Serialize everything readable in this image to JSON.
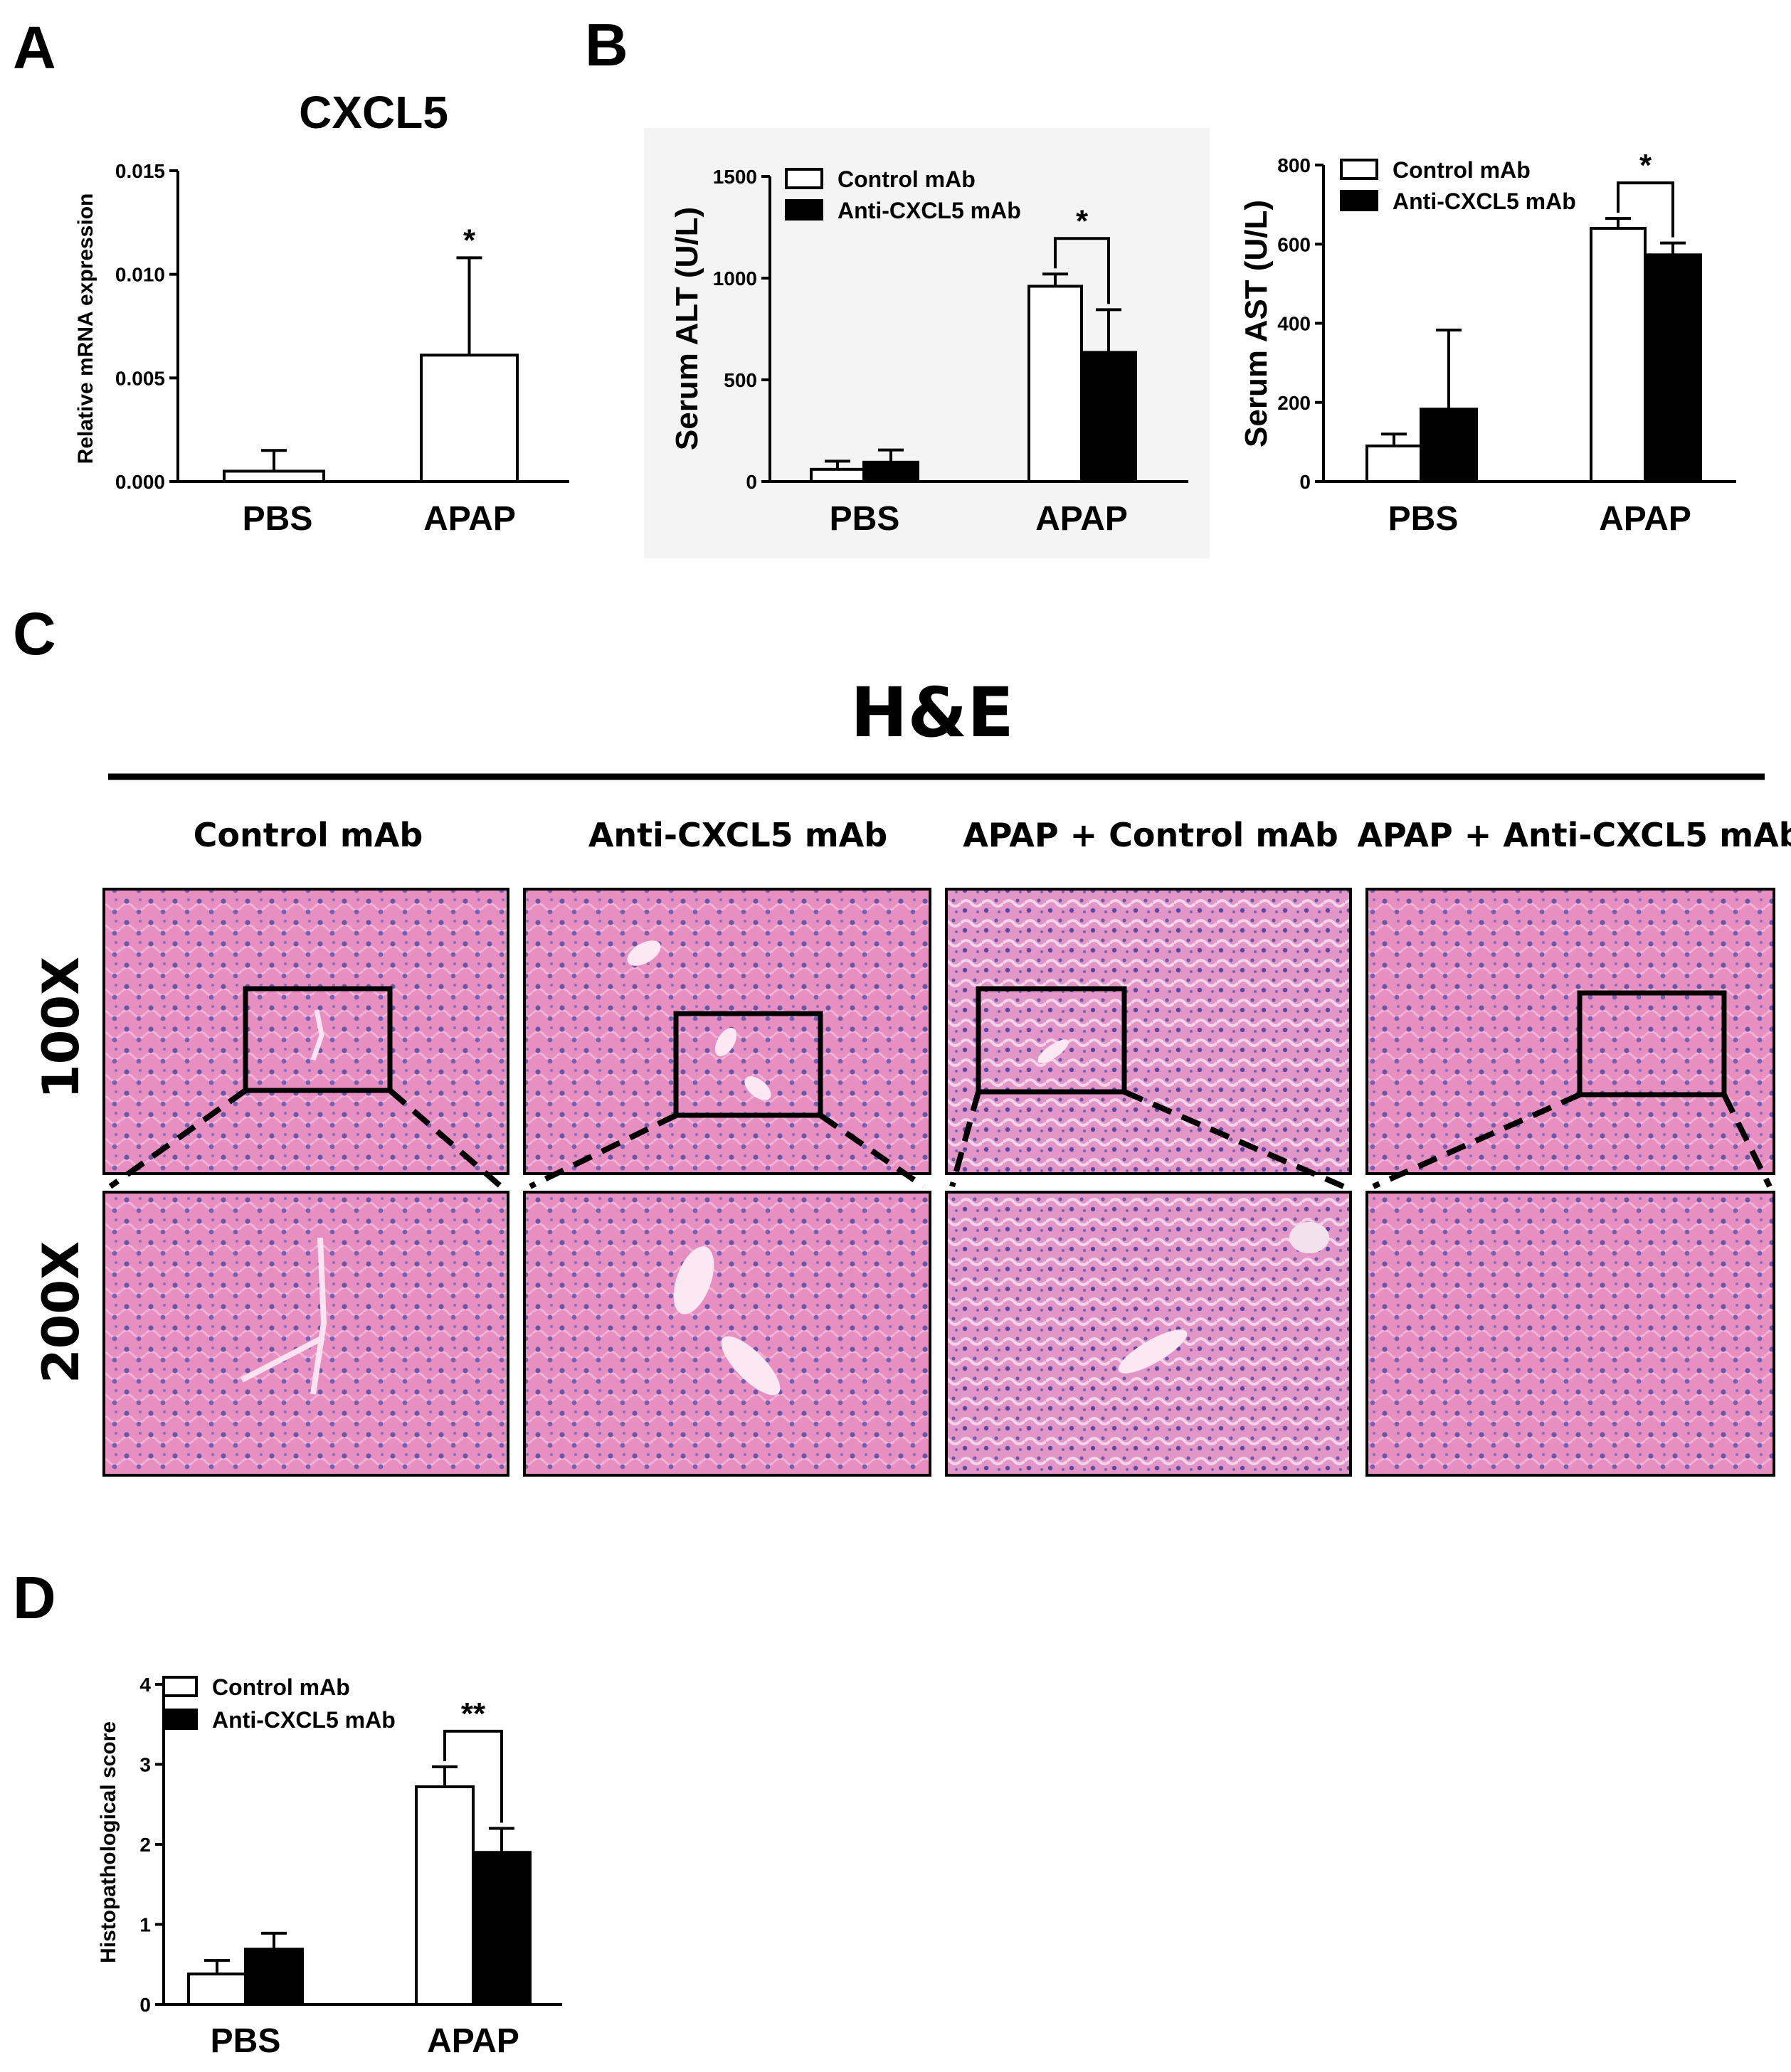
{
  "panels": {
    "a": "A",
    "b": "B",
    "c": "C",
    "d": "D"
  },
  "legend": {
    "control": "Control mAb",
    "anti": "Anti-CXCL5 mAb"
  },
  "colors": {
    "control_fill": "#ffffff",
    "anti_fill": "#000000",
    "stroke": "#000000",
    "he_pink": "#e58fc0",
    "he_nuclei": "#6b4fa3"
  },
  "he": {
    "title": "H&E",
    "columns": [
      "Control mAb",
      "Anti-CXCL5 mAb",
      "APAP + Control mAb",
      "APAP + Anti-CXCL5 mAb"
    ],
    "rows": [
      "100X",
      "200X"
    ]
  },
  "chart_data": [
    {
      "id": "A",
      "type": "bar",
      "title": "CXCL5",
      "ylabel": "Relative mRNA expression",
      "xlabel": "",
      "categories": [
        "PBS",
        "APAP"
      ],
      "series": [
        {
          "values": [
            0.0005,
            0.0061
          ],
          "errors": [
            0.001,
            0.0047
          ]
        }
      ],
      "ylim": [
        0,
        0.015
      ],
      "yticks": [
        "0.000",
        "0.005",
        "0.010",
        "0.015"
      ],
      "annotations": [
        {
          "category": "APAP",
          "text": "*"
        }
      ]
    },
    {
      "id": "B-ALT",
      "type": "bar",
      "title": "",
      "ylabel": "Serum ALT (U/L)",
      "xlabel": "",
      "categories": [
        "PBS",
        "APAP"
      ],
      "series": [
        {
          "name": "Control mAb",
          "values": [
            60,
            960
          ],
          "errors": [
            40,
            60
          ]
        },
        {
          "name": "Anti-CXCL5 mAb",
          "values": [
            95,
            635
          ],
          "errors": [
            60,
            210
          ]
        }
      ],
      "ylim": [
        0,
        1500
      ],
      "yticks": [
        "0",
        "500",
        "1000",
        "1500"
      ],
      "legend_position": "top-left",
      "annotations": [
        {
          "category": "APAP",
          "text": "*",
          "bracket": true
        }
      ]
    },
    {
      "id": "B-AST",
      "type": "bar",
      "title": "",
      "ylabel": "Serum AST (U/L)",
      "xlabel": "",
      "categories": [
        "PBS",
        "APAP"
      ],
      "series": [
        {
          "name": "Control mAb",
          "values": [
            90,
            640
          ],
          "errors": [
            30,
            25
          ]
        },
        {
          "name": "Anti-CXCL5 mAb",
          "values": [
            183,
            573
          ],
          "errors": [
            200,
            30
          ]
        }
      ],
      "ylim": [
        0,
        800
      ],
      "yticks": [
        "0",
        "200",
        "400",
        "600",
        "800"
      ],
      "legend_position": "top-left",
      "annotations": [
        {
          "category": "APAP",
          "text": "*",
          "bracket": true
        }
      ]
    },
    {
      "id": "D",
      "type": "bar",
      "title": "",
      "ylabel": "Histopathological score",
      "xlabel": "",
      "categories": [
        "PBS",
        "APAP"
      ],
      "series": [
        {
          "name": "Control mAb",
          "values": [
            0.38,
            2.72
          ],
          "errors": [
            0.17,
            0.25
          ]
        },
        {
          "name": "Anti-CXCL5 mAb",
          "values": [
            0.69,
            1.9
          ],
          "errors": [
            0.2,
            0.3
          ]
        }
      ],
      "ylim": [
        0,
        4
      ],
      "yticks": [
        "0",
        "1",
        "2",
        "3",
        "4"
      ],
      "legend_position": "top-left",
      "annotations": [
        {
          "category": "APAP",
          "text": "**",
          "bracket": true
        }
      ]
    }
  ]
}
